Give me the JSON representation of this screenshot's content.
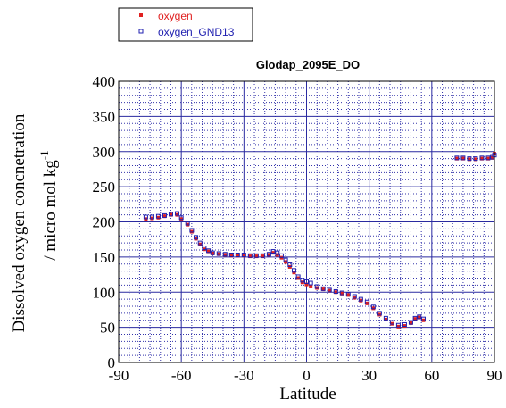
{
  "chart_data": {
    "type": "scatter",
    "title": "Glodap_2095E_DO",
    "xlabel": "Latitude",
    "ylabel_line1": "Dissolved oxygen concnetration",
    "ylabel_line2": "/ micro mol kg",
    "ylabel_sup": "-1",
    "xlim": [
      -90,
      90
    ],
    "ylim": [
      0,
      400
    ],
    "xticks": [
      -90,
      -60,
      -30,
      0,
      30,
      60,
      90
    ],
    "yticks": [
      0,
      50,
      100,
      150,
      200,
      250,
      300,
      350,
      400
    ],
    "grid": true,
    "legend_position": "top-left-outside",
    "series": [
      {
        "name": "oxygen",
        "color": "#e02020",
        "points": [
          [
            -77,
            204
          ],
          [
            -74,
            205
          ],
          [
            -71,
            206
          ],
          [
            -68,
            208
          ],
          [
            -65,
            210
          ],
          [
            -62,
            210
          ],
          [
            -60,
            204
          ],
          [
            -57,
            196
          ],
          [
            -55,
            186
          ],
          [
            -53,
            176
          ],
          [
            -51,
            168
          ],
          [
            -49,
            161
          ],
          [
            -47,
            158
          ],
          [
            -45,
            155
          ],
          [
            -42,
            154
          ],
          [
            -39,
            153
          ],
          [
            -36,
            152
          ],
          [
            -33,
            152
          ],
          [
            -30,
            152
          ],
          [
            -27,
            151
          ],
          [
            -24,
            151
          ],
          [
            -21,
            151
          ],
          [
            -18,
            153
          ],
          [
            -16,
            156
          ],
          [
            -14,
            153
          ],
          [
            -12,
            149
          ],
          [
            -10,
            143
          ],
          [
            -8,
            136
          ],
          [
            -6,
            128
          ],
          [
            -4,
            120
          ],
          [
            -2,
            114
          ],
          [
            0,
            111
          ],
          [
            2,
            108
          ],
          [
            5,
            106
          ],
          [
            8,
            104
          ],
          [
            11,
            102
          ],
          [
            14,
            100
          ],
          [
            17,
            98
          ],
          [
            20,
            96
          ],
          [
            23,
            92
          ],
          [
            26,
            88
          ],
          [
            29,
            84
          ],
          [
            32,
            77
          ],
          [
            35,
            68
          ],
          [
            38,
            61
          ],
          [
            41,
            55
          ],
          [
            44,
            51
          ],
          [
            47,
            52
          ],
          [
            50,
            56
          ],
          [
            52,
            62
          ],
          [
            54,
            64
          ],
          [
            56,
            60
          ],
          [
            72,
            290
          ],
          [
            75,
            290
          ],
          [
            78,
            289
          ],
          [
            81,
            289
          ],
          [
            84,
            290
          ],
          [
            87,
            290
          ],
          [
            89,
            291
          ],
          [
            90,
            297
          ]
        ]
      },
      {
        "name": "oxygen_GND13",
        "color": "#2020b0",
        "points": [
          [
            -77,
            207
          ],
          [
            -74,
            207
          ],
          [
            -71,
            208
          ],
          [
            -68,
            209
          ],
          [
            -65,
            211
          ],
          [
            -62,
            212
          ],
          [
            -60,
            206
          ],
          [
            -57,
            198
          ],
          [
            -55,
            188
          ],
          [
            -53,
            178
          ],
          [
            -51,
            170
          ],
          [
            -49,
            163
          ],
          [
            -47,
            159
          ],
          [
            -45,
            156
          ],
          [
            -42,
            155
          ],
          [
            -39,
            154
          ],
          [
            -36,
            153
          ],
          [
            -33,
            153
          ],
          [
            -30,
            153
          ],
          [
            -27,
            152
          ],
          [
            -24,
            152
          ],
          [
            -21,
            152
          ],
          [
            -18,
            154
          ],
          [
            -16,
            158
          ],
          [
            -14,
            156
          ],
          [
            -12,
            152
          ],
          [
            -10,
            146
          ],
          [
            -8,
            139
          ],
          [
            -6,
            131
          ],
          [
            -4,
            122
          ],
          [
            -2,
            117
          ],
          [
            0,
            115
          ],
          [
            2,
            113
          ],
          [
            5,
            108
          ],
          [
            8,
            105
          ],
          [
            11,
            103
          ],
          [
            14,
            101
          ],
          [
            17,
            99
          ],
          [
            20,
            97
          ],
          [
            23,
            94
          ],
          [
            26,
            90
          ],
          [
            29,
            86
          ],
          [
            32,
            79
          ],
          [
            35,
            70
          ],
          [
            38,
            63
          ],
          [
            41,
            57
          ],
          [
            44,
            53
          ],
          [
            47,
            54
          ],
          [
            50,
            57
          ],
          [
            52,
            63
          ],
          [
            54,
            65
          ],
          [
            56,
            62
          ],
          [
            72,
            291
          ],
          [
            75,
            291
          ],
          [
            78,
            290
          ],
          [
            81,
            290
          ],
          [
            84,
            291
          ],
          [
            87,
            291
          ],
          [
            89,
            292
          ],
          [
            90,
            295
          ]
        ]
      }
    ]
  }
}
